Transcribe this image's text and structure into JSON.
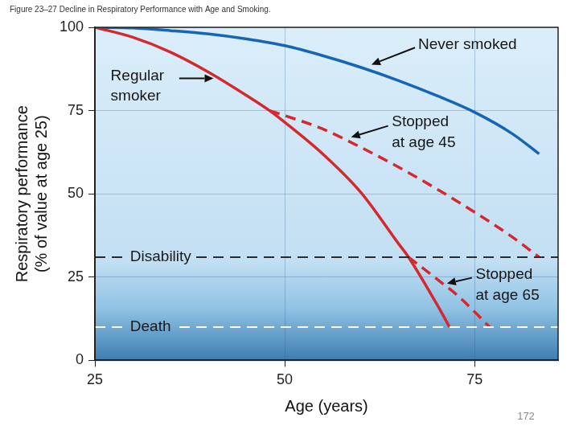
{
  "chart_data": {
    "type": "line",
    "title": "Figure 23–27 Decline in Respiratory Performance with Age and Smoking.",
    "x_label": "Age (years)",
    "y_label": "Respiratory performance (% of value at age 25)",
    "xlim": [
      25,
      86
    ],
    "xticks": [
      25,
      50,
      75
    ],
    "ylim": [
      0,
      100
    ],
    "yticks": [
      0,
      25,
      50,
      75,
      100
    ],
    "grid": true,
    "series": [
      {
        "name": "Never smoked",
        "color": "#1766b5",
        "line_style": "solid",
        "x": [
          25,
          30,
          35,
          40,
          45,
          50,
          55,
          60,
          65,
          70,
          75,
          80,
          83.5
        ],
        "values": [
          100,
          99.8,
          99,
          98,
          96.5,
          94.5,
          91.5,
          88,
          84,
          79.5,
          74.5,
          68,
          62
        ]
      },
      {
        "name": "Regular smoker",
        "color": "#d42a2f",
        "line_style": "solid",
        "x": [
          25,
          30,
          35,
          40,
          45,
          48,
          50,
          55,
          60,
          65,
          66.3,
          70,
          71.7
        ],
        "values": [
          100,
          97,
          92.5,
          86.5,
          79.5,
          75,
          71.5,
          62,
          50.5,
          35,
          31,
          17,
          10
        ]
      },
      {
        "name": "Stopped at age 45",
        "color": "#d42a2f",
        "line_style": "dashed",
        "x": [
          48,
          50,
          55,
          60,
          65,
          70,
          75,
          80,
          83.5
        ],
        "values": [
          75,
          73.5,
          69.5,
          64,
          58,
          51.5,
          44.5,
          37,
          31
        ]
      },
      {
        "name": "Stopped at age 65",
        "color": "#d42a2f",
        "line_style": "dashed",
        "x": [
          66.3,
          70,
          73,
          77
        ],
        "values": [
          31,
          24.5,
          19,
          10
        ]
      }
    ],
    "reference_lines": [
      {
        "label": "Disability",
        "value": 31,
        "color": "#2b2b2b",
        "line_style": "dashed"
      },
      {
        "label": "Death",
        "value": 10,
        "color": "#ffffff",
        "line_style": "dashed"
      }
    ],
    "page_number": 172
  }
}
